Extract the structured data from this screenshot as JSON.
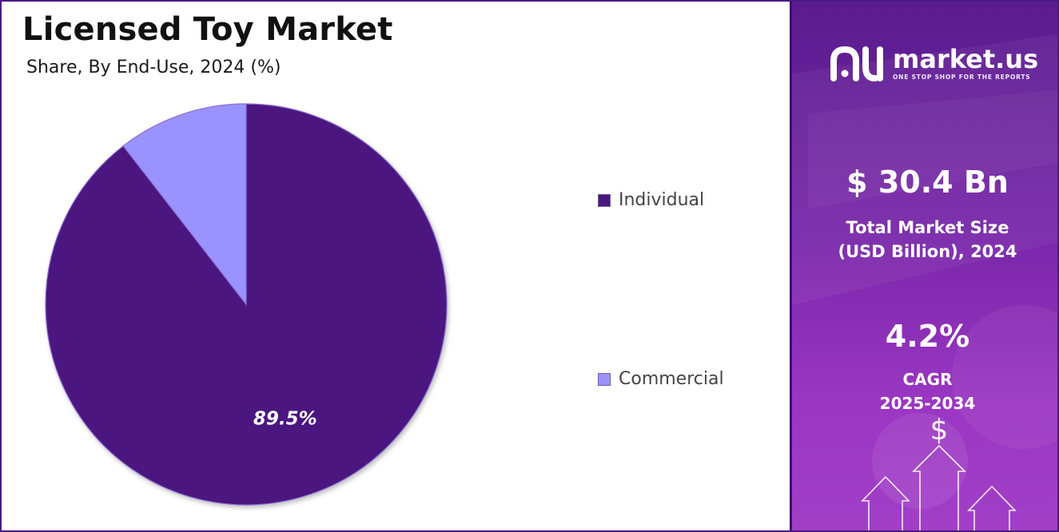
{
  "header": {
    "title": "Licensed Toy Market",
    "subtitle": "Share, By End-Use, 2024 (%)"
  },
  "chart_data": {
    "type": "pie",
    "categories": [
      "Individual",
      "Commercial"
    ],
    "values": [
      89.5,
      10.5
    ],
    "colors": [
      "#4b167f",
      "#9a93ff"
    ],
    "data_labels": [
      "89.5%",
      ""
    ],
    "legend_position": "right"
  },
  "sidebar": {
    "brand": "market.us",
    "tagline": "ONE STOP SHOP FOR THE REPORTS",
    "market_size_value": "$ 30.4 Bn",
    "market_size_label_line1": "Total Market Size",
    "market_size_label_line2": "(USD Billion), 2024",
    "cagr_value": "4.2%",
    "cagr_label_line1": "CAGR",
    "cagr_label_line2": "2025-2034"
  }
}
